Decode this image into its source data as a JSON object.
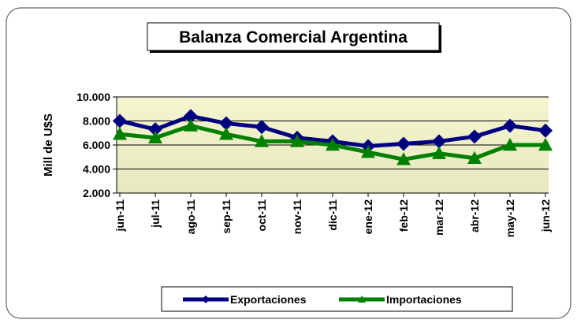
{
  "chart_data": {
    "type": "line",
    "title": "Balanza Comercial Argentina",
    "y_label": "Mill de U$S",
    "categories": [
      "jun-11",
      "jul-11",
      "ago-11",
      "sep-11",
      "oct-11",
      "nov-11",
      "dic-11",
      "ene-12",
      "feb-12",
      "mar-12",
      "abr-12",
      "may-12",
      "jun-12"
    ],
    "series": [
      {
        "name": "Exportaciones",
        "color": "#000080",
        "marker": "diamond",
        "values": [
          8000,
          7300,
          8400,
          7800,
          7500,
          6600,
          6300,
          5900,
          6100,
          6300,
          6700,
          7600,
          7200
        ]
      },
      {
        "name": "Importaciones",
        "color": "#008000",
        "marker": "triangle",
        "values": [
          6900,
          6600,
          7600,
          6900,
          6300,
          6300,
          6000,
          5400,
          4800,
          5300,
          4900,
          6000,
          6000
        ]
      }
    ],
    "ylim": [
      2000,
      10000
    ],
    "yticks": [
      {
        "value": 2000,
        "label": "2.000"
      },
      {
        "value": 4000,
        "label": "4.000"
      },
      {
        "value": 6000,
        "label": "6.000"
      },
      {
        "value": 8000,
        "label": "8.000"
      },
      {
        "value": 10000,
        "label": "10.000"
      }
    ],
    "grid": true,
    "legend": "bottom"
  }
}
